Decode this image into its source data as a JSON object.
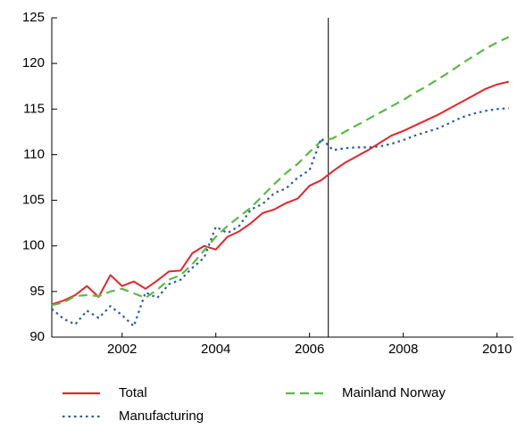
{
  "chart_data": {
    "type": "line",
    "x": [
      2001,
      2001.25,
      2001.5,
      2001.75,
      2002,
      2002.25,
      2002.5,
      2002.75,
      2003,
      2003.25,
      2003.5,
      2003.75,
      2004,
      2004.25,
      2004.5,
      2004.75,
      2005,
      2005.25,
      2005.5,
      2005.75,
      2006,
      2006.25,
      2006.5,
      2006.75,
      2007,
      2007.25,
      2007.5,
      2007.75,
      2008,
      2008.25,
      2008.5,
      2008.75,
      2009,
      2009.25,
      2009.5,
      2009.75,
      2010,
      2010.25,
      2010.5,
      2010.75
    ],
    "series": [
      {
        "name": "Total",
        "color": "#e3262a",
        "dash": "solid",
        "values": [
          93.6,
          94.0,
          94.6,
          95.6,
          94.4,
          96.8,
          95.6,
          96.1,
          95.3,
          96.2,
          97.2,
          97.3,
          99.2,
          100.0,
          99.6,
          101.0,
          101.6,
          102.5,
          103.6,
          104.0,
          104.7,
          105.2,
          106.6,
          107.2,
          108.2,
          109.1,
          109.8,
          110.5,
          111.3,
          112.1,
          112.6,
          113.2,
          113.8,
          114.4,
          115.1,
          115.8,
          116.5,
          117.2,
          117.7,
          118.0
        ]
      },
      {
        "name": "Mainland Norway",
        "color": "#5cb946",
        "dash": "dashed",
        "values": [
          93.5,
          93.8,
          94.5,
          94.6,
          94.5,
          95.0,
          95.3,
          94.8,
          94.3,
          95.2,
          96.3,
          96.8,
          98.0,
          99.5,
          101.0,
          102.2,
          103.2,
          104.2,
          105.5,
          106.8,
          108.0,
          109.0,
          110.3,
          111.5,
          111.8,
          112.5,
          113.2,
          113.9,
          114.6,
          115.3,
          116.0,
          116.8,
          117.5,
          118.3,
          119.1,
          120.0,
          120.8,
          121.6,
          122.3,
          122.9
        ]
      },
      {
        "name": "Manufacturing",
        "color": "#2a5aa8",
        "dash": "dotted",
        "values": [
          93.1,
          92.0,
          91.4,
          92.9,
          92.1,
          93.4,
          92.4,
          91.2,
          94.9,
          94.3,
          95.8,
          96.3,
          97.6,
          98.7,
          102.1,
          101.4,
          102.2,
          104.0,
          104.6,
          105.8,
          106.3,
          107.5,
          108.3,
          111.8,
          110.5,
          110.7,
          110.8,
          110.8,
          110.9,
          111.2,
          111.6,
          112.1,
          112.5,
          112.9,
          113.5,
          114.1,
          114.5,
          114.8,
          115.0,
          115.1
        ]
      }
    ],
    "xlim": [
      2001,
      2010.85
    ],
    "xticks": [
      {
        "value": 2002.5,
        "label": "2002"
      },
      {
        "value": 2004.5,
        "label": "2004"
      },
      {
        "value": 2006.5,
        "label": "2006"
      },
      {
        "value": 2008.5,
        "label": "2008"
      },
      {
        "value": 2010.5,
        "label": "2010"
      }
    ],
    "ylim": [
      90,
      125
    ],
    "yticks": [
      90,
      95,
      100,
      105,
      110,
      115,
      120,
      125
    ],
    "vline": 2006.9,
    "grid": false
  }
}
